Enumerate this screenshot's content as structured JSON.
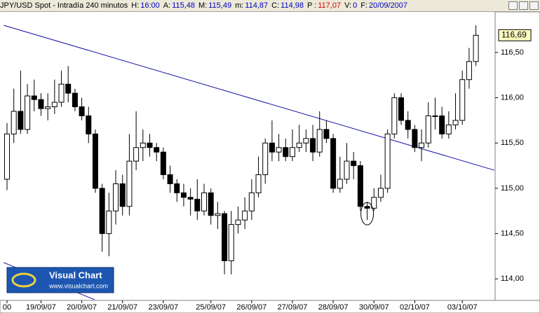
{
  "chart_data": {
    "type": "candlestick",
    "header": {
      "symbol": "JPY/USD Spot - Intradía 240 minutos",
      "fields": [
        {
          "label": "H:",
          "value": "16:00"
        },
        {
          "label": "A:",
          "value": "115,48"
        },
        {
          "label": "M:",
          "value": "115,49"
        },
        {
          "label": "m:",
          "value": "114,87"
        },
        {
          "label": "C:",
          "value": "114,98"
        },
        {
          "label": "P :",
          "value": "117,07",
          "color": "#e00000"
        },
        {
          "label": "V:",
          "value": "0"
        },
        {
          "label": "F:",
          "value": "20/09/2007"
        }
      ]
    },
    "categories": [
      "00",
      null,
      null,
      null,
      null,
      "19/09/07",
      null,
      null,
      null,
      null,
      null,
      "20/09/07",
      null,
      null,
      null,
      null,
      null,
      "21/09/07",
      null,
      null,
      null,
      null,
      null,
      "23/09/07",
      null,
      null,
      null,
      null,
      null,
      null,
      "25/09/07",
      null,
      null,
      null,
      null,
      null,
      "26/09/07",
      null,
      null,
      null,
      null,
      null,
      "27/09/07",
      null,
      null,
      null,
      null,
      null,
      "28/09/07",
      null,
      null,
      null,
      null,
      null,
      "30/09/07",
      null,
      null,
      null,
      null,
      null,
      "02/10/07",
      null,
      null,
      null,
      null,
      null,
      null,
      "03/10/07",
      null,
      null
    ],
    "open": [
      115.1,
      115.6,
      115.85,
      115.65,
      116.02,
      115.98,
      115.88,
      115.9,
      115.95,
      116.15,
      116.05,
      115.9,
      115.8,
      115.6,
      115.0,
      114.5,
      114.75,
      115.05,
      114.8,
      115.3,
      115.45,
      115.5,
      115.45,
      115.4,
      115.15,
      115.05,
      114.95,
      114.9,
      114.88,
      114.75,
      114.95,
      114.7,
      114.72,
      114.2,
      114.6,
      114.65,
      114.75,
      114.95,
      115.15,
      115.5,
      115.4,
      115.45,
      115.35,
      115.45,
      115.5,
      115.55,
      115.4,
      115.65,
      115.55,
      115.0,
      115.1,
      115.3,
      115.25,
      114.8,
      114.78,
      114.9,
      115.0,
      115.6,
      116.0,
      115.75,
      115.65,
      115.45,
      115.5,
      115.8,
      115.8,
      115.6,
      115.7,
      115.75,
      116.2,
      116.4
    ],
    "high": [
      115.72,
      116.1,
      116.3,
      116.15,
      116.2,
      116.05,
      116.05,
      116.2,
      116.3,
      116.35,
      116.1,
      116.0,
      115.9,
      115.65,
      115.05,
      114.95,
      115.2,
      115.15,
      115.6,
      115.85,
      115.65,
      115.6,
      115.5,
      115.45,
      115.25,
      115.1,
      115.05,
      115.0,
      115.1,
      115.05,
      115.0,
      114.85,
      114.75,
      114.75,
      114.8,
      114.9,
      115.1,
      115.35,
      115.55,
      115.75,
      115.6,
      115.55,
      115.65,
      115.7,
      115.65,
      115.7,
      115.85,
      115.75,
      115.6,
      115.35,
      115.5,
      115.4,
      115.3,
      114.85,
      115.0,
      115.15,
      115.65,
      116.05,
      116.05,
      115.85,
      115.7,
      115.65,
      115.95,
      116.0,
      115.9,
      115.85,
      116.05,
      116.3,
      116.55,
      116.8
    ],
    "low": [
      114.98,
      115.5,
      115.6,
      115.6,
      115.85,
      115.8,
      115.75,
      115.82,
      115.9,
      115.95,
      115.85,
      115.75,
      115.5,
      114.95,
      114.3,
      114.25,
      114.6,
      114.7,
      114.7,
      115.2,
      115.3,
      115.35,
      115.3,
      115.1,
      114.95,
      114.85,
      114.8,
      114.7,
      114.65,
      114.7,
      114.6,
      114.55,
      114.05,
      114.05,
      114.5,
      114.55,
      114.65,
      114.9,
      115.05,
      115.3,
      115.3,
      115.3,
      115.3,
      115.4,
      115.4,
      115.3,
      115.35,
      115.5,
      114.95,
      114.95,
      115.05,
      115.1,
      114.75,
      114.65,
      114.75,
      114.85,
      114.95,
      115.55,
      115.7,
      115.55,
      115.4,
      115.3,
      115.45,
      115.65,
      115.55,
      115.55,
      115.65,
      115.7,
      116.1,
      116.35
    ],
    "close": [
      115.6,
      115.85,
      115.65,
      116.02,
      115.98,
      115.88,
      115.9,
      115.95,
      116.15,
      116.05,
      115.9,
      115.8,
      115.6,
      115.0,
      114.5,
      114.75,
      115.05,
      114.8,
      115.3,
      115.45,
      115.5,
      115.45,
      115.4,
      115.15,
      115.05,
      114.95,
      114.9,
      114.88,
      114.75,
      114.95,
      114.7,
      114.72,
      114.2,
      114.6,
      114.65,
      114.75,
      114.95,
      115.15,
      115.5,
      115.4,
      115.45,
      115.35,
      115.45,
      115.5,
      115.55,
      115.4,
      115.65,
      115.55,
      115.0,
      115.1,
      115.3,
      115.25,
      114.8,
      114.78,
      114.9,
      115.0,
      115.6,
      116.0,
      115.75,
      115.65,
      115.45,
      115.5,
      115.8,
      115.8,
      115.6,
      115.7,
      115.75,
      116.2,
      116.4,
      116.69
    ],
    "up_color": "#ffffff",
    "down_color": "#000000",
    "ylim": [
      113.77,
      116.94
    ],
    "yticks": [
      {
        "value": 114.0,
        "label": "114,00"
      },
      {
        "value": 114.5,
        "label": "114,50"
      },
      {
        "value": 115.0,
        "label": "115,00"
      },
      {
        "value": 115.5,
        "label": "115,50"
      },
      {
        "value": 116.0,
        "label": "116,00"
      },
      {
        "value": 116.5,
        "label": "116,50"
      }
    ],
    "last_label": "116,69",
    "trendlines": [
      {
        "start": [
          -0.5,
          116.8
        ],
        "end": [
          71.7,
          115.2
        ],
        "color": "#1010a0"
      },
      {
        "start": [
          -0.5,
          114.18
        ],
        "end": [
          12.9,
          113.77
        ],
        "color": "#1010a0"
      }
    ],
    "marker": {
      "x": 53,
      "y": 114.72
    },
    "logo": {
      "title": "Visual Chart",
      "url": "www.visualchart.com"
    }
  }
}
